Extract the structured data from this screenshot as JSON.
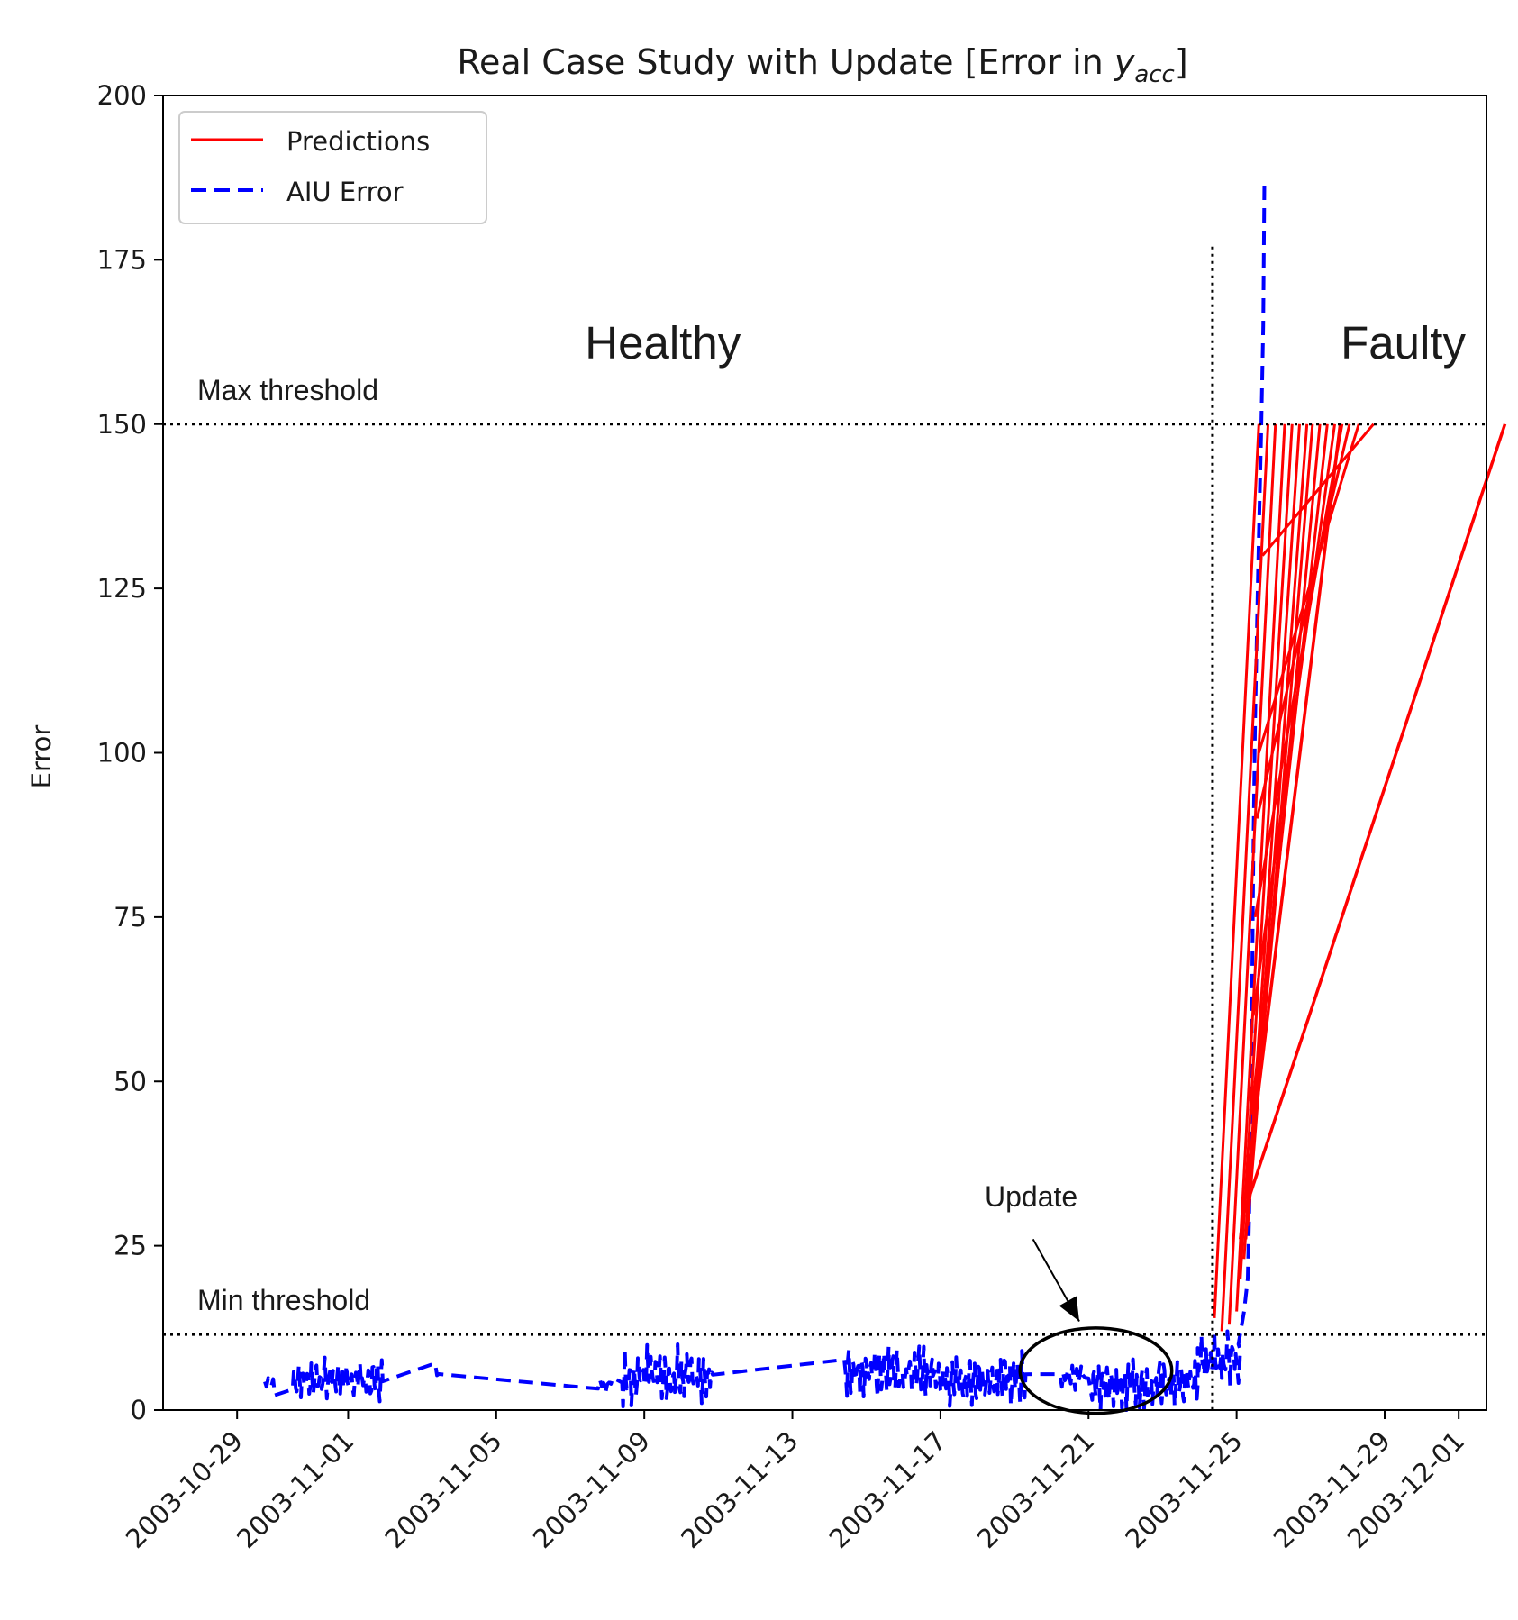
{
  "chart_data": {
    "type": "line",
    "title": "Real Case Study with Update [Error in ",
    "title_math_var": "y",
    "title_math_sub": "acc",
    "title_suffix": "]",
    "xlabel": "",
    "ylabel": "Error",
    "ylim": [
      0,
      200
    ],
    "yticks": [
      0,
      25,
      50,
      75,
      100,
      125,
      150,
      175,
      200
    ],
    "xlim_days": [
      -2.0,
      33.75
    ],
    "xticks": [
      {
        "label": "2003-10-29",
        "day": 0
      },
      {
        "label": "2003-11-01",
        "day": 3
      },
      {
        "label": "2003-11-05",
        "day": 7
      },
      {
        "label": "2003-11-09",
        "day": 11
      },
      {
        "label": "2003-11-13",
        "day": 15
      },
      {
        "label": "2003-11-17",
        "day": 19
      },
      {
        "label": "2003-11-21",
        "day": 23
      },
      {
        "label": "2003-11-25",
        "day": 27
      },
      {
        "label": "2003-11-29",
        "day": 31
      },
      {
        "label": "2003-12-01",
        "day": 33
      }
    ],
    "legend": {
      "position": "top-left",
      "entries": [
        {
          "label": "Predictions",
          "color": "#ff0000",
          "style": "solid"
        },
        {
          "label": "AIU Error",
          "color": "#0000ff",
          "style": "dashed"
        }
      ]
    },
    "thresholds": [
      {
        "name": "max",
        "label": "Max threshold",
        "value": 150
      },
      {
        "name": "min",
        "label": "Min threshold",
        "value": 11.5
      }
    ],
    "regions": [
      {
        "label": "Healthy",
        "x_center_day": 11.5
      },
      {
        "label": "Faulty",
        "x_center_day": 31.5
      }
    ],
    "fault_line_day": 26.35,
    "fault_line_top": 177,
    "update_annotation": {
      "label": "Update",
      "ellipse_center": {
        "day": 23.2,
        "value": 6
      },
      "ellipse_span_days": 4.1,
      "ellipse_span_value": 13,
      "arrow_tail": {
        "day": 21.5,
        "value": 26
      },
      "arrow_head": {
        "day": 22.75,
        "value": 13.5
      },
      "label_pos": {
        "day": 21.45,
        "value": 31
      }
    },
    "series": [
      {
        "name": "AIU Error",
        "color": "#0000ff",
        "style": "dashed",
        "noise_segments": [
          {
            "start": 0.75,
            "end": 1.05,
            "lo": 2,
            "hi": 6,
            "step": 0.045
          },
          {
            "start": 1.5,
            "end": 3.95,
            "lo": 1,
            "hi": 8,
            "step": 0.028
          },
          {
            "start": 5.35,
            "end": 5.45,
            "lo": 2,
            "hi": 9,
            "step": 0.05
          },
          {
            "start": 9.75,
            "end": 10.15,
            "lo": 2,
            "hi": 6,
            "step": 0.05
          },
          {
            "start": 10.4,
            "end": 12.85,
            "lo": 0.5,
            "hi": 10,
            "step": 0.025
          },
          {
            "start": 16.4,
            "end": 18.8,
            "lo": 1.5,
            "hi": 10,
            "step": 0.025
          },
          {
            "start": 18.85,
            "end": 21.3,
            "lo": 0.5,
            "hi": 9,
            "step": 0.025
          },
          {
            "start": 22.2,
            "end": 23.0,
            "lo": 3,
            "hi": 7,
            "step": 0.04
          },
          {
            "start": 23.1,
            "end": 25.95,
            "lo": 0.2,
            "hi": 8,
            "step": 0.025
          },
          {
            "start": 25.95,
            "end": 27.1,
            "lo": 3,
            "hi": 12,
            "step": 0.025
          }
        ],
        "tail_points": [
          [
            27.05,
            10
          ],
          [
            27.2,
            15
          ],
          [
            27.3,
            20
          ],
          [
            27.38,
            40
          ],
          [
            27.42,
            65
          ],
          [
            27.46,
            88
          ],
          [
            27.5,
            105
          ],
          [
            27.58,
            128
          ],
          [
            27.66,
            148
          ],
          [
            27.72,
            165
          ],
          [
            27.75,
            187
          ]
        ]
      },
      {
        "name": "Predictions",
        "color": "#ff0000",
        "style": "solid",
        "fan_origins": [
          [
            26.4,
            14
          ],
          [
            26.6,
            12
          ],
          [
            26.8,
            13
          ],
          [
            27.0,
            15
          ],
          [
            27.1,
            20
          ],
          [
            27.2,
            23
          ],
          [
            27.25,
            26
          ],
          [
            27.3,
            28
          ],
          [
            27.35,
            35
          ],
          [
            27.4,
            45
          ],
          [
            27.45,
            60
          ],
          [
            27.5,
            75
          ],
          [
            27.55,
            90
          ],
          [
            27.6,
            100
          ],
          [
            27.7,
            130
          ]
        ],
        "fan_end_value": 150,
        "fan_end_days": [
          27.6,
          27.85,
          28.05,
          28.3,
          28.5,
          28.7,
          28.9,
          29.05,
          29.25,
          29.45,
          29.65,
          29.85,
          30.05,
          30.3,
          30.7
        ],
        "extra_lines": [
          {
            "from": [
              27.1,
              26
            ],
            "to": [
              29.8,
              150
            ]
          },
          {
            "from": [
              27.2,
              30
            ],
            "to": [
              34.25,
              150
            ]
          }
        ]
      }
    ]
  }
}
